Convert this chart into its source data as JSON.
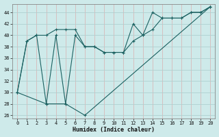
{
  "xlabel": "Humidex (Indice chaleur)",
  "background_color": "#ceeaea",
  "grid_color": "#aed0d0",
  "line_color": "#1a6060",
  "xlim": [
    -0.5,
    20.5
  ],
  "ylim": [
    25.5,
    45.5
  ],
  "xticks": [
    0,
    1,
    2,
    3,
    4,
    5,
    6,
    7,
    8,
    9,
    10,
    11,
    12,
    13,
    14,
    15,
    16,
    17,
    18,
    19,
    20
  ],
  "yticks": [
    26,
    28,
    30,
    32,
    34,
    36,
    38,
    40,
    42,
    44
  ],
  "series1_x": [
    0,
    1,
    2,
    3,
    4,
    5,
    6,
    7,
    8,
    9,
    10,
    11,
    12,
    13,
    14,
    15,
    16,
    17,
    18,
    19,
    20
  ],
  "series1_y": [
    30,
    39,
    40,
    40,
    41,
    41,
    41,
    38,
    38,
    37,
    37,
    37,
    39,
    40,
    41,
    43,
    43,
    43,
    44,
    44,
    45
  ],
  "series2_x": [
    0,
    1,
    2,
    3,
    4,
    5,
    6,
    7,
    8,
    9,
    10,
    11,
    12,
    13,
    14,
    15,
    16,
    17,
    18,
    19,
    20
  ],
  "series2_y": [
    30,
    39,
    40,
    28,
    40,
    28,
    40,
    38,
    38,
    37,
    37,
    37,
    42,
    40,
    44,
    43,
    43,
    43,
    44,
    44,
    45
  ],
  "series3_x": [
    0,
    3,
    5,
    7,
    20
  ],
  "series3_y": [
    30,
    28,
    28,
    26,
    45
  ]
}
